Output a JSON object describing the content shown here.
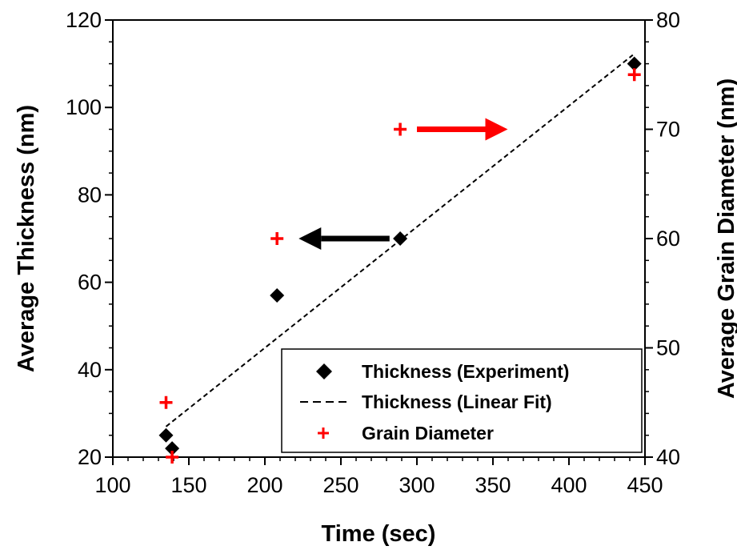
{
  "chart_data": {
    "type": "scatter",
    "title": "",
    "xlabel": "Time (sec)",
    "ylabel": "Average Thickness (nm)",
    "y2label": "Average Grain Diameter (nm)",
    "xlim": [
      100,
      450
    ],
    "ylim": [
      20,
      120
    ],
    "y2lim": [
      40,
      80
    ],
    "xticks": [
      100,
      150,
      200,
      250,
      300,
      350,
      400,
      450
    ],
    "yticks": [
      20,
      40,
      60,
      80,
      100,
      120
    ],
    "y2ticks": [
      40,
      50,
      60,
      70,
      80
    ],
    "grid": false,
    "legend_position": "bottom-right",
    "series": [
      {
        "name": "Thickness (Experiment)",
        "kind": "scatter",
        "marker": "diamond",
        "color": "#000000",
        "axis": "left",
        "x": [
          135,
          139,
          208,
          289,
          443
        ],
        "y": [
          25,
          22,
          57,
          70,
          110
        ]
      },
      {
        "name": "Thickness (Linear Fit)",
        "kind": "line",
        "style": "dashed",
        "color": "#000000",
        "axis": "left",
        "x": [
          135,
          442
        ],
        "y": [
          27,
          112
        ]
      },
      {
        "name": "Grain Diameter",
        "kind": "scatter",
        "marker": "plus",
        "color": "#ff0000",
        "axis": "right",
        "x": [
          135,
          139,
          208,
          289,
          443
        ],
        "y": [
          45,
          40,
          60,
          70,
          75
        ]
      }
    ],
    "annotations": [
      {
        "type": "arrow",
        "direction": "left",
        "color": "#000000",
        "x_from": 282,
        "x_to": 237,
        "y": 70,
        "axis": "left",
        "meaning": "points to left axis"
      },
      {
        "type": "arrow",
        "direction": "right",
        "color": "#ff0000",
        "x_from": 300,
        "x_to": 345,
        "y": 70,
        "axis": "right",
        "meaning": "points to right axis"
      }
    ]
  }
}
